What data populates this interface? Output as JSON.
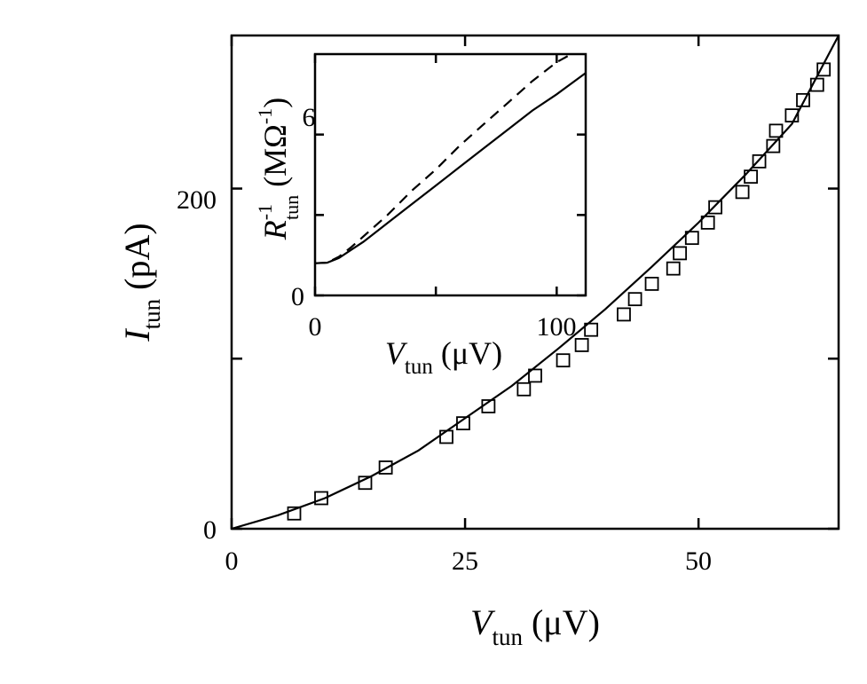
{
  "chart_data": [
    {
      "type": "scatter",
      "panel": "main",
      "title": "",
      "xlabel": {
        "symbol": "V",
        "subscript": "tun",
        "unit": " (μV)"
      },
      "ylabel": {
        "symbol": "I",
        "subscript": "tun",
        "unit": " (pA)"
      },
      "xlim": [
        0,
        65
      ],
      "ylim": [
        0,
        290
      ],
      "xticks": [
        0,
        25,
        50
      ],
      "yticks": [
        0,
        200
      ],
      "minor_yticks": [
        100
      ],
      "grid": false,
      "series": [
        {
          "marker": "open-square",
          "x": [
            6.7,
            9.6,
            14.3,
            16.5,
            23.0,
            24.8,
            27.5,
            31.3,
            32.5,
            35.5,
            37.5,
            38.5,
            42.0,
            43.2,
            45.0,
            47.3,
            48.0,
            49.3,
            51.0,
            51.8,
            54.7,
            55.6,
            56.5,
            58.0,
            58.3,
            60.0,
            61.2,
            62.7,
            63.4
          ],
          "y": [
            9,
            18,
            27,
            36,
            54,
            62,
            72,
            82,
            90,
            99,
            108,
            117,
            126,
            135,
            144,
            153,
            162,
            171,
            180,
            189,
            198,
            207,
            216,
            225,
            234,
            243,
            252,
            261,
            270
          ]
        },
        {
          "style": "solid-line",
          "x": [
            0,
            5,
            10,
            15,
            20,
            25,
            30,
            35,
            40,
            45,
            50,
            55,
            60,
            65
          ],
          "y": [
            0,
            8,
            18,
            31,
            46,
            65,
            84,
            106,
            129,
            154,
            180,
            208,
            238,
            290
          ]
        }
      ]
    },
    {
      "type": "line",
      "panel": "inset",
      "title": "",
      "xlabel": {
        "symbol": "V",
        "subscript": "tun",
        "unit": " (μV)"
      },
      "ylabel": {
        "symbol": "R",
        "superscript": "-1",
        "subscript": "tun",
        "unit": " (MΩ",
        "unit_superscript": "-1",
        "unit_close": ")"
      },
      "xlim": [
        0,
        112
      ],
      "ylim": [
        0,
        9
      ],
      "xticks": [
        0,
        100
      ],
      "yticks": [
        0,
        6
      ],
      "minor_xticks": [
        50
      ],
      "minor_yticks": [
        3
      ],
      "series": [
        {
          "style": "solid-line",
          "x": [
            0,
            5,
            10,
            15,
            20,
            30,
            40,
            50,
            60,
            70,
            80,
            90,
            100,
            112
          ],
          "y": [
            1.2,
            1.22,
            1.4,
            1.7,
            2.0,
            2.7,
            3.4,
            4.1,
            4.8,
            5.5,
            6.2,
            6.9,
            7.5,
            8.3
          ]
        },
        {
          "style": "dashed-line",
          "x": [
            0,
            5,
            10,
            15,
            20,
            30,
            40,
            50,
            60,
            70,
            80,
            90,
            100,
            106
          ],
          "y": [
            1.2,
            1.22,
            1.45,
            1.8,
            2.2,
            3.0,
            3.9,
            4.7,
            5.6,
            6.4,
            7.2,
            8.0,
            8.7,
            9.0
          ]
        }
      ]
    }
  ]
}
